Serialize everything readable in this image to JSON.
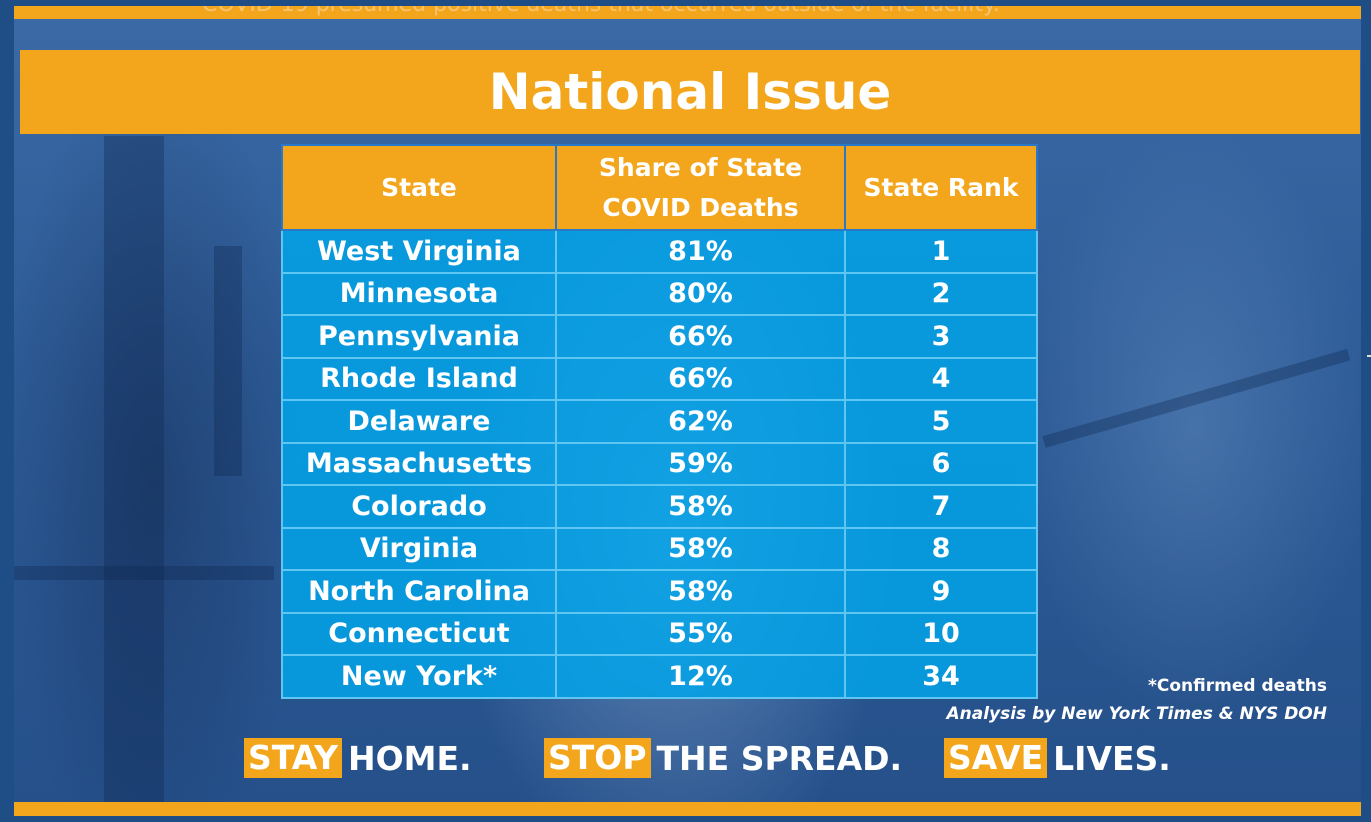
{
  "faded_caption": "COVID-19 presumed positive deaths that occurred outside of the facility.",
  "title": "National Issue",
  "table": {
    "headers": [
      "State",
      "Share of State COVID Deaths",
      "State Rank"
    ],
    "rows": [
      [
        "West Virginia",
        "81%",
        "1"
      ],
      [
        "Minnesota",
        "80%",
        "2"
      ],
      [
        "Pennsylvania",
        "66%",
        "3"
      ],
      [
        "Rhode Island",
        "66%",
        "4"
      ],
      [
        "Delaware",
        "62%",
        "5"
      ],
      [
        "Massachusetts",
        "59%",
        "6"
      ],
      [
        "Colorado",
        "58%",
        "7"
      ],
      [
        "Virginia",
        "58%",
        "8"
      ],
      [
        "North Carolina",
        "58%",
        "9"
      ],
      [
        "Connecticut",
        "55%",
        "10"
      ],
      [
        "New York*",
        "12%",
        "34"
      ]
    ]
  },
  "notes": {
    "footnote": "*Confirmed deaths",
    "source": "Analysis by New York Times & NYS DOH"
  },
  "slogan": [
    {
      "highlight": "STAY",
      "rest": "HOME."
    },
    {
      "highlight": "STOP",
      "rest": "THE SPREAD."
    },
    {
      "highlight": "SAVE",
      "rest": "LIVES."
    }
  ],
  "colors": {
    "accent_orange": "#f3a51c",
    "cell_blue": "#00a6ec",
    "background_blue": "#2a5a98"
  }
}
